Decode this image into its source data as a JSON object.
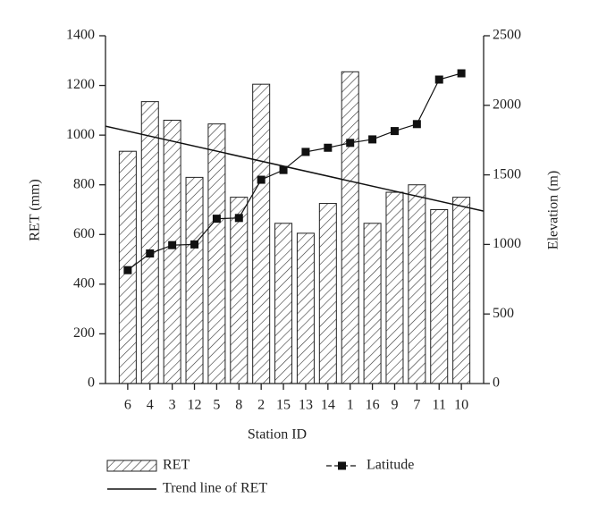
{
  "chart_data": {
    "type": "bar",
    "x_label": "Station ID",
    "y_label": "RET (mm)",
    "y2_label": "Elevation (m)",
    "categories": [
      "6",
      "4",
      "3",
      "12",
      "5",
      "8",
      "2",
      "15",
      "13",
      "14",
      "1",
      "16",
      "9",
      "7",
      "11",
      "10"
    ],
    "series": [
      {
        "name": "RET",
        "color": "#222222",
        "values": [
          935,
          1135,
          1060,
          830,
          1045,
          750,
          1205,
          645,
          605,
          725,
          1255,
          645,
          770,
          800,
          700,
          750
        ]
      },
      {
        "name": "Latitude",
        "type": "line",
        "axis": "y2",
        "color": "#111111",
        "values": [
          815,
          935,
          995,
          1000,
          1185,
          1190,
          1465,
          1535,
          1665,
          1695,
          1730,
          1755,
          1815,
          1865,
          2185,
          2230
        ]
      }
    ],
    "trend": {
      "name": "Trend line of RET",
      "color": "#111111",
      "values": [
        1036,
        694
      ]
    },
    "ylim": [
      0,
      1400
    ],
    "yticks": [
      0,
      200,
      400,
      600,
      800,
      1000,
      1200,
      1400
    ],
    "y2lim": [
      0,
      2500
    ],
    "y2ticks": [
      0,
      500,
      1000,
      1500,
      2000,
      2500
    ]
  }
}
